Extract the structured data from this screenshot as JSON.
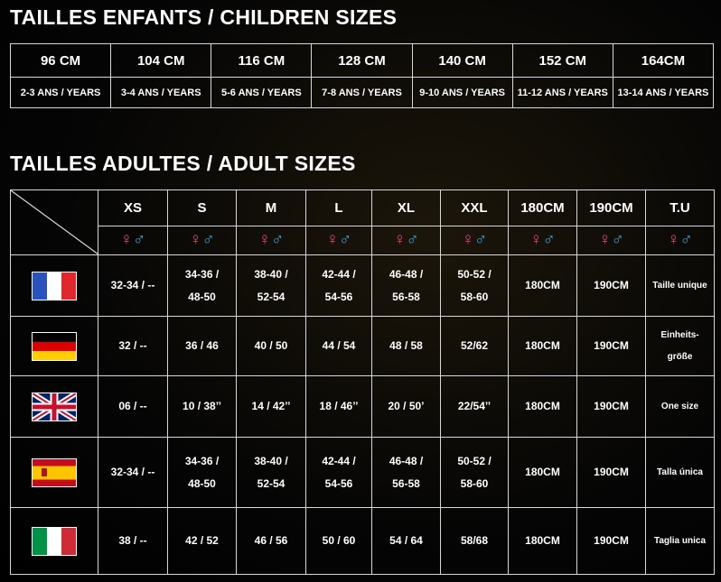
{
  "children": {
    "title": "TAILLES ENFANTS / CHILDREN SIZES",
    "sizes": [
      "96 CM",
      "104 CM",
      "116 CM",
      "128 CM",
      "140 CM",
      "152 CM",
      "164CM"
    ],
    "ages": [
      "2-3 ANS / YEARS",
      "3-4 ANS / YEARS",
      "5-6 ANS / YEARS",
      "7-8 ANS / YEARS",
      "9-10 ANS / YEARS",
      "11-12 ANS / YEARS",
      "13-14 ANS / YEARS"
    ]
  },
  "adult": {
    "title": "TAILLES ADULTES / ADULT SIZES",
    "headers": [
      "XS",
      "S",
      "M",
      "L",
      "XL",
      "XXL",
      "180CM",
      "190CM",
      "T.U"
    ],
    "gender_symbols": {
      "female": "♀",
      "male": "♂"
    },
    "rows": [
      {
        "cells": [
          "32-34 / --",
          [
            "34-36 /",
            "48-50"
          ],
          [
            "38-40 /",
            "52-54"
          ],
          [
            "42-44 /",
            "54-56"
          ],
          [
            "46-48 /",
            "56-58"
          ],
          [
            "50-52 /",
            "58-60"
          ],
          "180CM",
          "190CM",
          "Taille unique"
        ]
      },
      {
        "cells": [
          "32 / --",
          "36 / 46",
          "40 / 50",
          "44 / 54",
          "48 / 58",
          "52/62",
          "180CM",
          "190CM",
          [
            "Einheits-",
            "größe"
          ]
        ]
      },
      {
        "cells": [
          "06 / --",
          "10 / 38’’",
          "14 / 42’’",
          "18 / 46’’",
          "20 / 50’",
          "22/54’’",
          "180CM",
          "190CM",
          "One size"
        ]
      },
      {
        "cells": [
          "32-34 / --",
          [
            "34-36 /",
            "48-50"
          ],
          [
            "38-40 /",
            "52-54"
          ],
          [
            "42-44 /",
            "54-56"
          ],
          [
            "46-48 /",
            "56-58"
          ],
          [
            "50-52 /",
            "58-60"
          ],
          "180CM",
          "190CM",
          "Talla única"
        ]
      },
      {
        "cells": [
          "38 / --",
          "42 / 52",
          "46 / 56",
          "50 / 60",
          "54 / 64",
          "58/68",
          "180CM",
          "190CM",
          "Taglia unica"
        ]
      }
    ]
  }
}
